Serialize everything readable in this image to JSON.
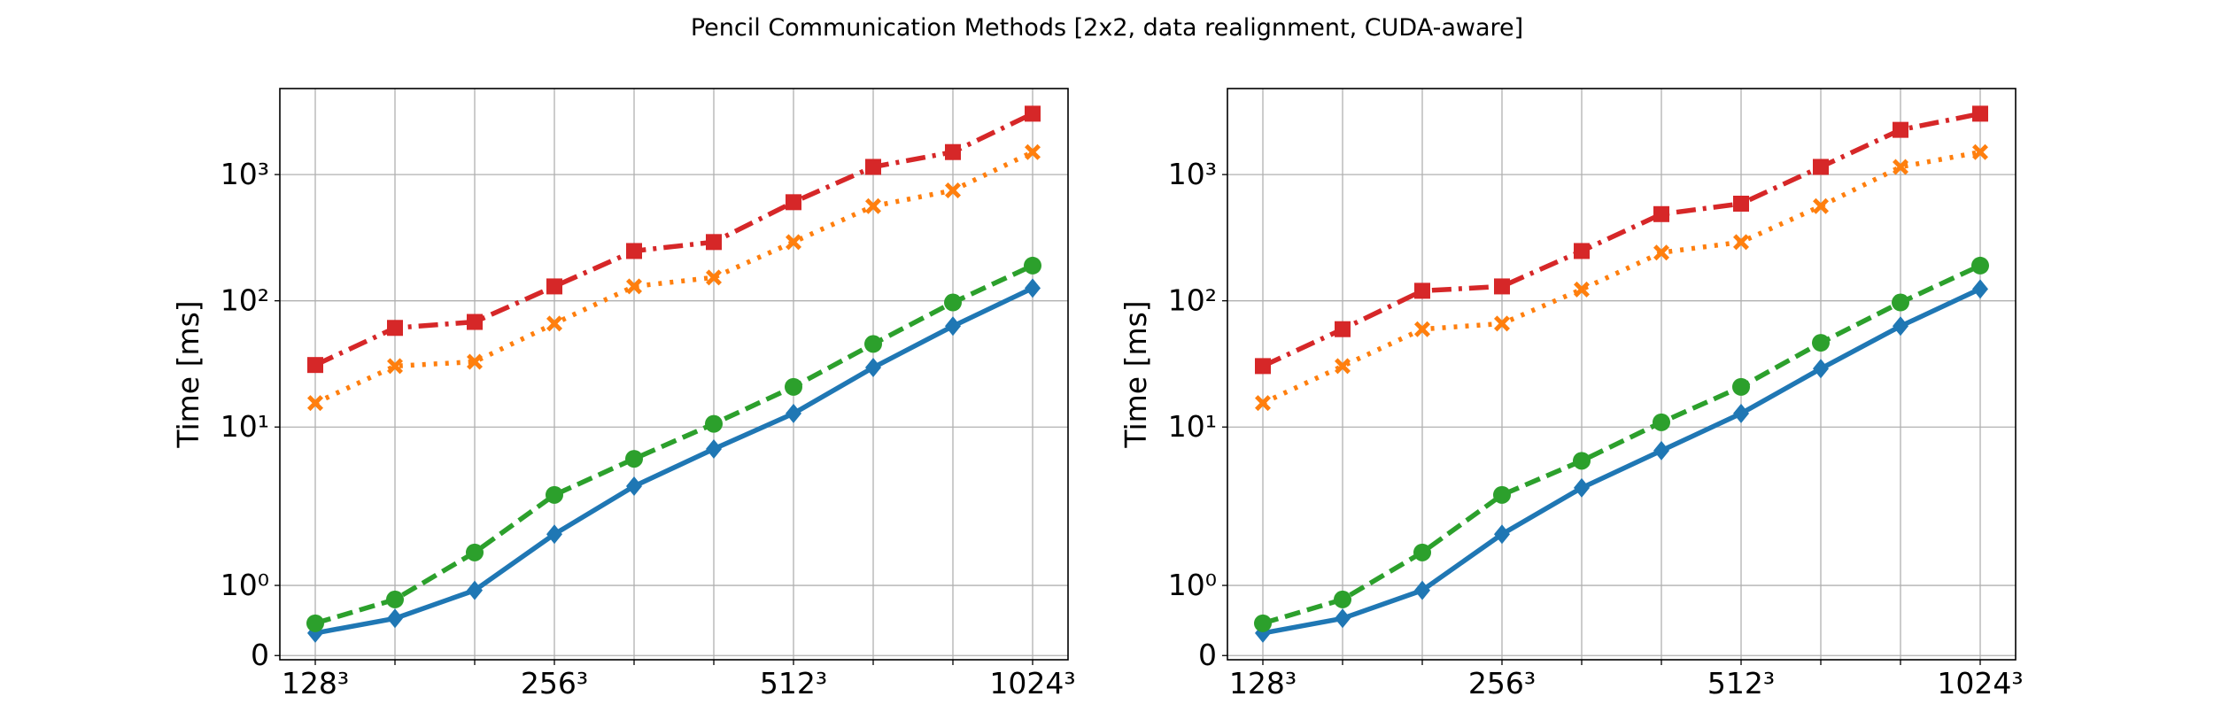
{
  "title": "Pencil Communication Methods [2x2, data realignment, CUDA-aware]",
  "chart_data": [
    {
      "type": "line",
      "ylabel": "Time [ms]",
      "yscale": "symlog",
      "linthresh": 2,
      "linscale": 1,
      "grid": true,
      "categories": [
        "128³",
        null,
        null,
        "256³",
        null,
        null,
        "512³",
        null,
        null,
        "1024³"
      ],
      "ylim": [
        -0.06,
        4800
      ],
      "yticks": [
        0,
        {
          "value": 1,
          "label": "10⁰"
        },
        {
          "value": 10,
          "label": "10¹"
        },
        {
          "value": 100,
          "label": "10²"
        },
        {
          "value": 1000,
          "label": "10³"
        }
      ],
      "series": [
        {
          "color": "#1f77b4",
          "marker": "diamond",
          "linestyle": "solid",
          "values": [
            0.32,
            0.53,
            0.93,
            1.73,
            3.4,
            6.7,
            12.8,
            29.6,
            63,
            126
          ]
        },
        {
          "color": "#ff7f0e",
          "marker": "x",
          "linestyle": "dotted",
          "values": [
            15.5,
            30.4,
            32.9,
            66,
            130,
            153,
            292,
            562,
            749,
            1507
          ]
        },
        {
          "color": "#2ca02c",
          "marker": "circle",
          "linestyle": "dashed",
          "values": [
            0.46,
            0.8,
            1.47,
            2.9,
            5.6,
            10.6,
            20.8,
            45.5,
            97,
            190
          ]
        },
        {
          "color": "#d62728",
          "marker": "square",
          "linestyle": "dashdot",
          "values": [
            31,
            61,
            68,
            130,
            248,
            292,
            604,
            1150,
            1507,
            3035
          ]
        }
      ]
    },
    {
      "type": "line",
      "ylabel": "Time [ms]",
      "yscale": "symlog",
      "linthresh": 2,
      "linscale": 1,
      "grid": true,
      "categories": [
        "128³",
        null,
        null,
        "256³",
        null,
        null,
        "512³",
        null,
        null,
        "1024³"
      ],
      "ylim": [
        -0.06,
        4800
      ],
      "yticks": [
        0,
        {
          "value": 1,
          "label": "10⁰"
        },
        {
          "value": 10,
          "label": "10¹"
        },
        {
          "value": 100,
          "label": "10²"
        },
        {
          "value": 1000,
          "label": "10³"
        }
      ],
      "series": [
        {
          "color": "#1f77b4",
          "marker": "diamond",
          "linestyle": "solid",
          "values": [
            0.32,
            0.53,
            0.93,
            1.73,
            3.3,
            6.5,
            12.8,
            29,
            63,
            124
          ]
        },
        {
          "color": "#ff7f0e",
          "marker": "x",
          "linestyle": "dotted",
          "values": [
            15.5,
            30.4,
            59.6,
            66,
            123,
            241,
            292,
            562,
            1150,
            1507
          ]
        },
        {
          "color": "#2ca02c",
          "marker": "circle",
          "linestyle": "dashed",
          "values": [
            0.46,
            0.8,
            1.47,
            2.9,
            5.4,
            10.9,
            20.8,
            46.5,
            97,
            190
          ]
        },
        {
          "color": "#d62728",
          "marker": "square",
          "linestyle": "dashdot",
          "values": [
            30.4,
            59.6,
            120,
            130,
            248,
            486,
            588,
            1150,
            2260,
            3035
          ]
        }
      ]
    }
  ]
}
